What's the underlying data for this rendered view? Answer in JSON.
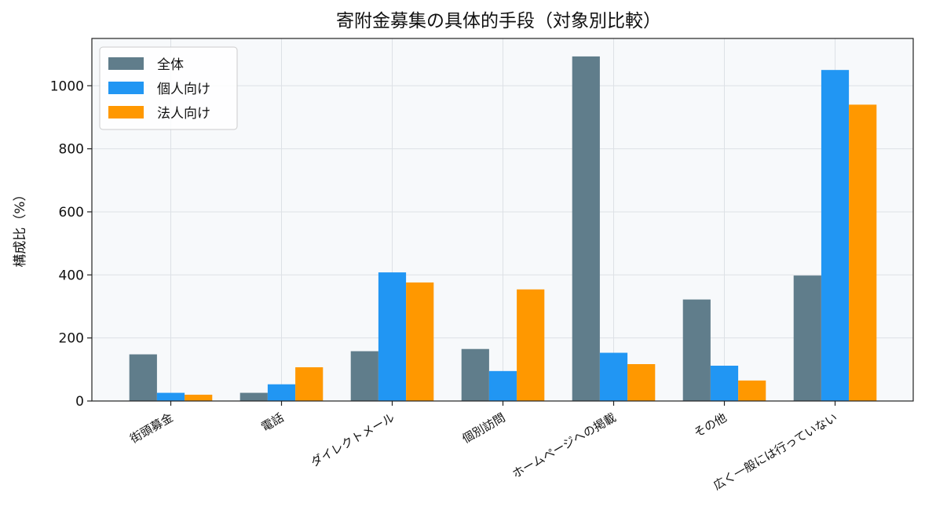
{
  "chart_data": {
    "type": "bar",
    "title": "寄附金募集の具体的手段（対象別比較）",
    "xlabel": "",
    "ylabel": "構成比（%）",
    "categories": [
      "街頭募金",
      "電話",
      "ダイレクトメール",
      "個別訪問",
      "ホームページへの掲載",
      "その他",
      "広く一般には行っていない"
    ],
    "series": [
      {
        "name": "全体",
        "color": "#607d8b",
        "values": [
          148,
          26,
          158,
          165,
          1093,
          322,
          398
        ]
      },
      {
        "name": "個人向け",
        "color": "#2196f3",
        "values": [
          26,
          53,
          408,
          95,
          153,
          112,
          1050
        ]
      },
      {
        "name": "法人向け",
        "color": "#ff9800",
        "values": [
          20,
          107,
          376,
          354,
          117,
          65,
          940
        ]
      }
    ],
    "ylim": [
      0,
      1150
    ],
    "yticks": [
      0,
      200,
      400,
      600,
      800,
      1000
    ],
    "grid": true,
    "legend_position": "top-left",
    "plot_background": "#f7f9fb",
    "grid_color": "#dde1e6"
  }
}
